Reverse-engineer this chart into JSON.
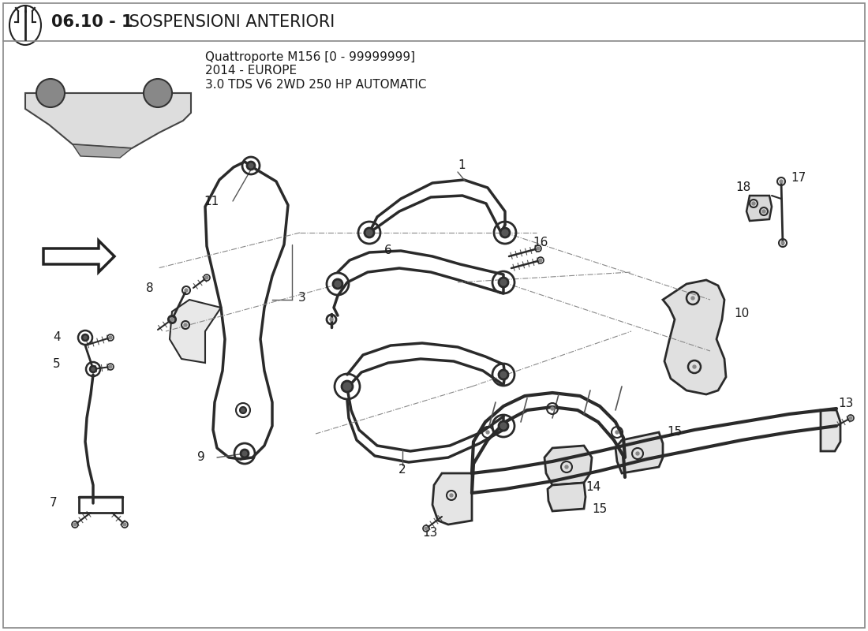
{
  "title_bold": "06.10 - 1",
  "title_text": " SOSPENSIONI ANTERIORI",
  "subtitle_line1": "Quattroporte M156 [0 - 99999999]",
  "subtitle_line2": "2014 - EUROPE",
  "subtitle_line3": "3.0 TDS V6 2WD 250 HP AUTOMATIC",
  "bg_color": "#ffffff",
  "text_color": "#1a1a1a",
  "line_color": "#2a2a2a"
}
